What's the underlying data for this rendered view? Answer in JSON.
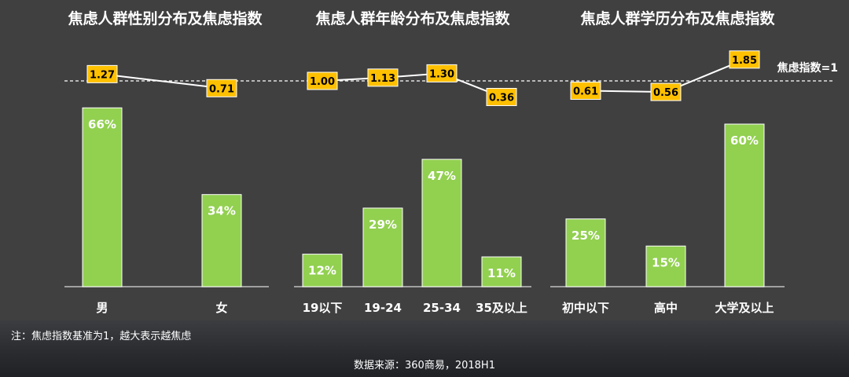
{
  "colors": {
    "background": "#404040",
    "bar": "#92d050",
    "index_box": "#ffc000",
    "index_text": "#000000",
    "line": "#ffffff",
    "text": "#ffffff"
  },
  "reference": {
    "value": 1,
    "label": "焦虑指数=1"
  },
  "chart_data": [
    {
      "type": "bar",
      "title": "焦虑人群性别分布及焦虑指数",
      "categories": [
        "男",
        "女"
      ],
      "series": [
        {
          "values": [
            66,
            34
          ],
          "unit": "%"
        },
        {
          "type": "line",
          "values": [
            1.27,
            0.71
          ]
        }
      ]
    },
    {
      "type": "bar",
      "title": "焦虑人群年龄分布及焦虑指数",
      "categories": [
        "19以下",
        "19-24",
        "25-34",
        "35及以上"
      ],
      "series": [
        {
          "values": [
            12,
            29,
            47,
            11
          ],
          "unit": "%"
        },
        {
          "type": "line",
          "values": [
            1.0,
            1.13,
            1.3,
            0.36
          ]
        }
      ]
    },
    {
      "type": "bar",
      "title": "焦虑人群学历分布及焦虑指数",
      "categories": [
        "初中以下",
        "高中",
        "大学及以上"
      ],
      "series": [
        {
          "values": [
            25,
            15,
            60
          ],
          "unit": "%"
        },
        {
          "type": "line",
          "values": [
            0.61,
            0.56,
            1.85
          ]
        }
      ]
    }
  ],
  "note": "注：焦虑指数基准为1，越大表示越焦虑",
  "source": "数据来源：360商易，2018H1"
}
